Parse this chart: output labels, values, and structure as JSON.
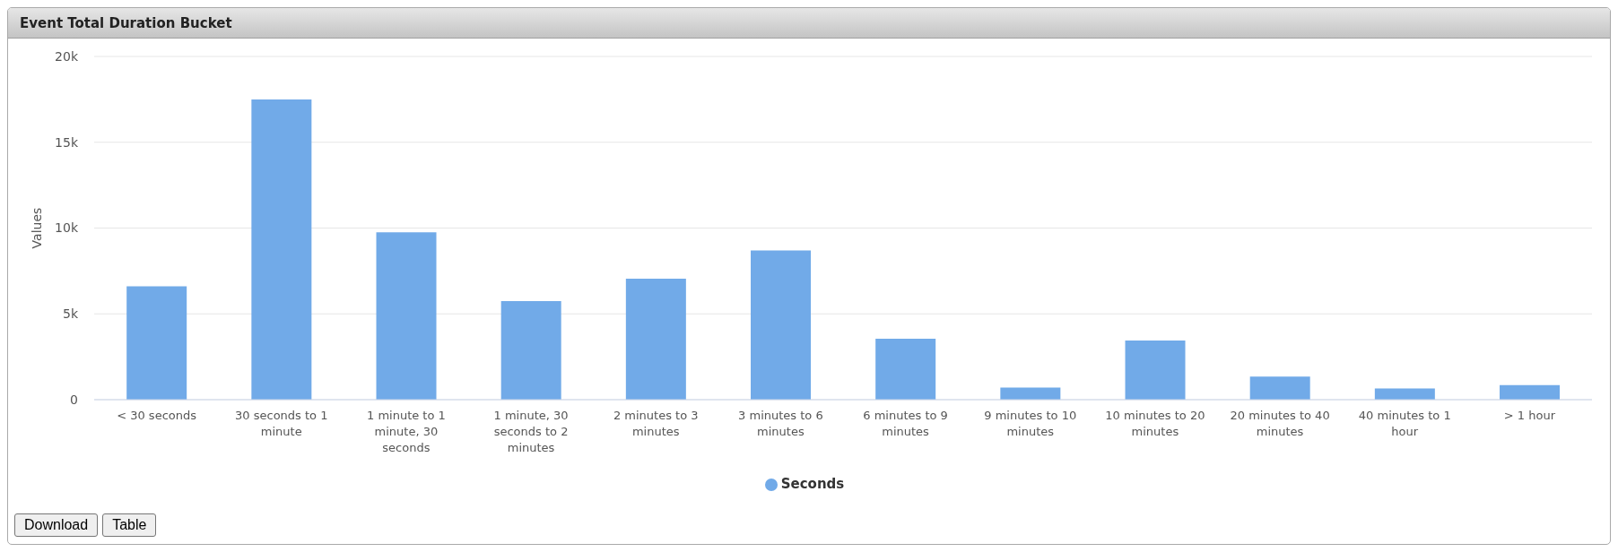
{
  "chart_data": {
    "type": "bar",
    "title": "Event Total Duration Bucket",
    "ylabel": "Values",
    "categories": [
      "< 30 seconds",
      "30 seconds to 1 minute",
      "1 minute to 1 minute, 30 seconds",
      "1 minute, 30 seconds to 2 minutes",
      "2 minutes to 3 minutes",
      "3 minutes to 6 minutes",
      "6 minutes to 9 minutes",
      "9 minutes to 10 minutes",
      "10 minutes to 20 minutes",
      "20 minutes to 40 minutes",
      "40 minutes to 1 hour",
      "> 1 hour"
    ],
    "series": [
      {
        "name": "Seconds",
        "color": "#71aae8",
        "values": [
          6600,
          17500,
          9750,
          5750,
          7050,
          8700,
          3550,
          700,
          3450,
          1350,
          650,
          850
        ]
      }
    ],
    "ylim": [
      0,
      20000
    ],
    "yticks": [
      0,
      {
        "value": 5000,
        "label": "5k"
      },
      {
        "value": 10000,
        "label": "10k"
      },
      {
        "value": 15000,
        "label": "15k"
      },
      {
        "value": 20000,
        "label": "20k"
      }
    ],
    "grid": "y",
    "legend": "bottom",
    "annotations": [
      "Download",
      "Table"
    ]
  }
}
